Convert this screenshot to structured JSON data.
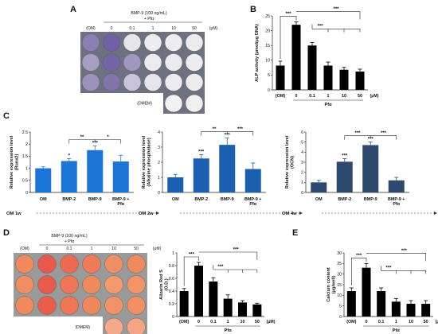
{
  "panels": {
    "A": {
      "letter": "A",
      "header": "BMP-9 (100 ng/mL)",
      "subheader": "+ Pfα",
      "col_labels": [
        "(OM)",
        "0",
        "0.1",
        "1",
        "10",
        "50"
      ],
      "unit": "(μM)",
      "extra_label": "(DMEM)",
      "well_rows": [
        [
          "#8a7fb0",
          "#6f5fa6",
          "#e6e6ea",
          "#ececef",
          "#ededf0",
          "#ececef"
        ],
        [
          "#a79ec4",
          "#7565a8",
          "#9f97c0",
          "#ececef",
          "#ebebee",
          "#ededf0"
        ],
        [
          "#9b92bd",
          "#8275ae",
          "#c8c3da",
          "#e5e4ec",
          "#ececef",
          "#ececef"
        ]
      ],
      "dmem_row": [
        "#f2f2f2",
        "#f0f0f0"
      ]
    },
    "D": {
      "letter": "D",
      "header": "BMP-9 (100 ng/mL)",
      "subheader": "+ Pfα",
      "col_labels": [
        "(OM)",
        "0",
        "0.1",
        "1",
        "10",
        "50"
      ],
      "unit": "(μM)",
      "extra_label": "(DMEM)",
      "well_rows": [
        [
          "#f08a5d",
          "#e9584a",
          "#ec6a4f",
          "#ee7a58",
          "#f08e63",
          "#ef8a60"
        ],
        [
          "#ef8e60",
          "#e85a4b",
          "#ee7656",
          "#ef8a5f",
          "#f29a6c",
          "#f19566"
        ],
        [
          "#f08a5d",
          "#e95e4d",
          "#ee7657",
          "#f0885e",
          "#f09367",
          "#f09063"
        ]
      ],
      "dmem_row": [
        "#f4a98a",
        "#f4a586"
      ]
    }
  },
  "chart_data": [
    {
      "id": "B",
      "type": "bar",
      "panel_letter": "B",
      "categories": [
        "(OM)",
        "0",
        "0.1",
        "1",
        "10",
        "50"
      ],
      "values": [
        8.2,
        22.0,
        15.0,
        8.2,
        6.8,
        6.2
      ],
      "errors": [
        1.5,
        1.0,
        1.0,
        1.2,
        0.8,
        0.8
      ],
      "ylabel": "ALP activity (μmol/μg DNA)",
      "xlabel": "Pfα",
      "unit_label": "(μM)",
      "ylim": [
        0,
        25
      ],
      "yticks": [
        0,
        5,
        10,
        15,
        20,
        25
      ],
      "bar_color": "#000000",
      "sig": [
        "***",
        "***",
        "***"
      ]
    },
    {
      "id": "C1",
      "type": "bar",
      "panel_letter": "C",
      "categories": [
        "OM",
        "BMP-2",
        "BMP-9",
        "BMP-9 +\nPfα"
      ],
      "values": [
        1.0,
        1.3,
        1.75,
        1.28
      ],
      "errors": [
        0.06,
        0.1,
        0.17,
        0.26
      ],
      "ylabel": "Relative expression level\n(Runx2)",
      "ylim": [
        0,
        2.5
      ],
      "yticks": [
        0,
        0.5,
        1,
        1.5,
        2,
        2.5
      ],
      "bar_color": "#1a75d6",
      "bar_marks": [
        "",
        "*",
        "***",
        ""
      ],
      "sig": [
        "**",
        "*"
      ],
      "time_label": "OM 1w"
    },
    {
      "id": "C2",
      "type": "bar",
      "panel_letter": "",
      "categories": [
        "OM",
        "BMP-2",
        "BMP-9",
        "BMP-9 +\nPfα"
      ],
      "values": [
        1.0,
        2.25,
        3.15,
        1.55
      ],
      "errors": [
        0.2,
        0.25,
        0.45,
        0.4
      ],
      "ylabel": "Relative expression level\n(Alkaline phosphatase)",
      "ylim": [
        0,
        4
      ],
      "yticks": [
        0,
        1,
        2,
        3,
        4
      ],
      "bar_color": "#1a5fb0",
      "bar_marks": [
        "",
        "***",
        "***",
        ""
      ],
      "sig": [
        "**",
        "***"
      ],
      "time_label": "OM 2w"
    },
    {
      "id": "C3",
      "type": "bar",
      "panel_letter": "",
      "categories": [
        "OM",
        "BMP-2",
        "BMP-9",
        "BMP-9 +\nPfα"
      ],
      "values": [
        1.0,
        3.05,
        4.7,
        1.2
      ],
      "errors": [
        0.2,
        0.3,
        0.3,
        0.3
      ],
      "ylabel": "Relative expression level\n(OCN)",
      "ylim": [
        0,
        6
      ],
      "yticks": [
        0,
        1,
        2,
        3,
        4,
        5,
        6
      ],
      "bar_color": "#2d4a6e",
      "bar_marks": [
        "",
        "***",
        "***",
        ""
      ],
      "sig": [
        "***",
        "***"
      ],
      "time_label": "OM 4w"
    },
    {
      "id": "D",
      "type": "bar",
      "panel_letter": "",
      "categories": [
        "(OM)",
        "0",
        "0.1",
        "1",
        "10",
        "50"
      ],
      "values": [
        0.4,
        0.8,
        0.55,
        0.28,
        0.22,
        0.19
      ],
      "errors": [
        0.04,
        0.05,
        0.06,
        0.06,
        0.03,
        0.02
      ],
      "ylabel": "Alizarin Red S\n(O.D.)",
      "xlabel": "Pfα",
      "unit_label": "(μM)",
      "ylim": [
        0,
        1
      ],
      "yticks": [
        0,
        0.2,
        0.4,
        0.6,
        0.8,
        1
      ],
      "bar_color": "#000000",
      "sig": [
        "***",
        "***",
        "***"
      ]
    },
    {
      "id": "E",
      "type": "bar",
      "panel_letter": "E",
      "categories": [
        "(OM)",
        "0",
        "0.1",
        "1",
        "10",
        "50"
      ],
      "values": [
        12.0,
        23.0,
        12.0,
        7.0,
        6.0,
        6.0
      ],
      "errors": [
        1.5,
        2.0,
        1.5,
        1.5,
        1.5,
        1.5
      ],
      "ylabel": "Calcium content\n(μg/well)",
      "xlabel": "Pfα",
      "unit_label": "(μM)",
      "ylim": [
        0,
        30
      ],
      "yticks": [
        0,
        5,
        10,
        15,
        20,
        25,
        30
      ],
      "bar_color": "#000000",
      "sig": [
        "***",
        "***",
        "***"
      ]
    }
  ]
}
